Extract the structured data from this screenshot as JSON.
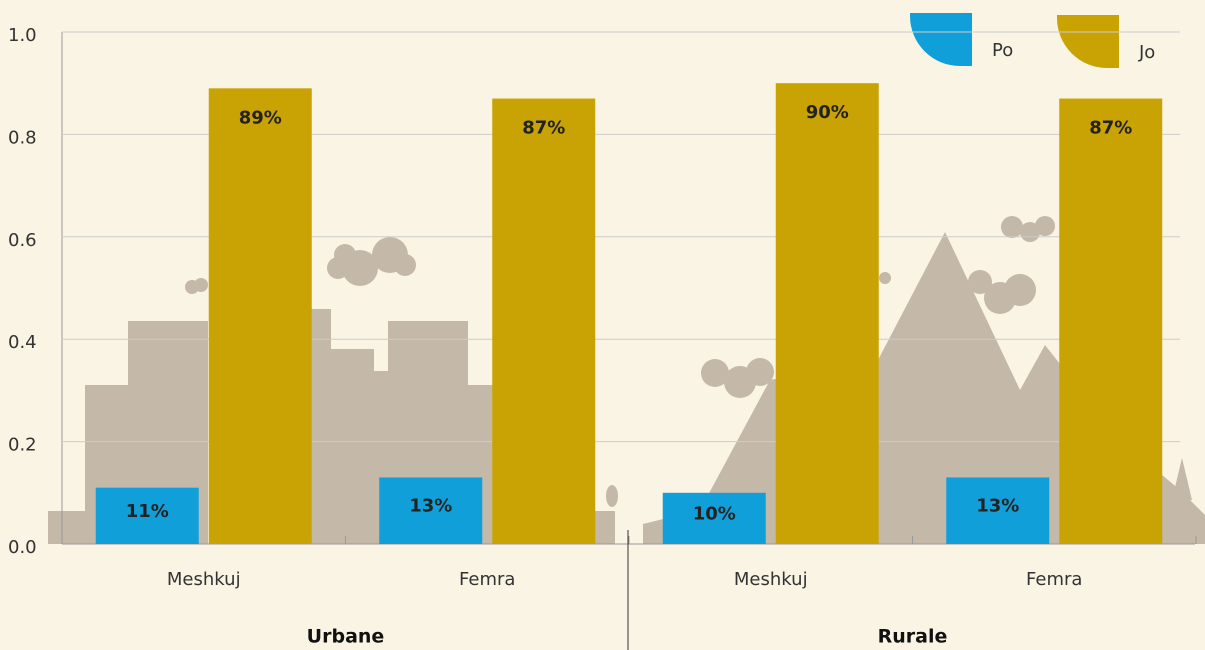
{
  "chart_data": {
    "type": "bar",
    "groups": [
      "Urbane",
      "Rurale"
    ],
    "categories": [
      "Meshkuj",
      "Femra",
      "Meshkuj",
      "Femra"
    ],
    "series": [
      {
        "name": "Po",
        "color": "#119fd9",
        "values": [
          0.11,
          0.13,
          0.1,
          0.13
        ],
        "value_labels": [
          "11%",
          "13%",
          "10%",
          "13%"
        ]
      },
      {
        "name": "Jo",
        "color": "#c9a204",
        "values": [
          0.89,
          0.87,
          0.9,
          0.87
        ],
        "value_labels": [
          "89%",
          "87%",
          "90%",
          "87%"
        ]
      }
    ],
    "ylim": [
      0,
      1
    ],
    "yticks": [
      {
        "value": 0,
        "label": "0.0"
      },
      {
        "value": 0.2,
        "label": "0.2"
      },
      {
        "value": 0.4,
        "label": "0.4"
      },
      {
        "value": 0.6,
        "label": "0.6"
      },
      {
        "value": 0.8,
        "label": "0.8"
      },
      {
        "value": 1,
        "label": "1.0"
      }
    ],
    "grid": true,
    "legend": "top-right"
  }
}
